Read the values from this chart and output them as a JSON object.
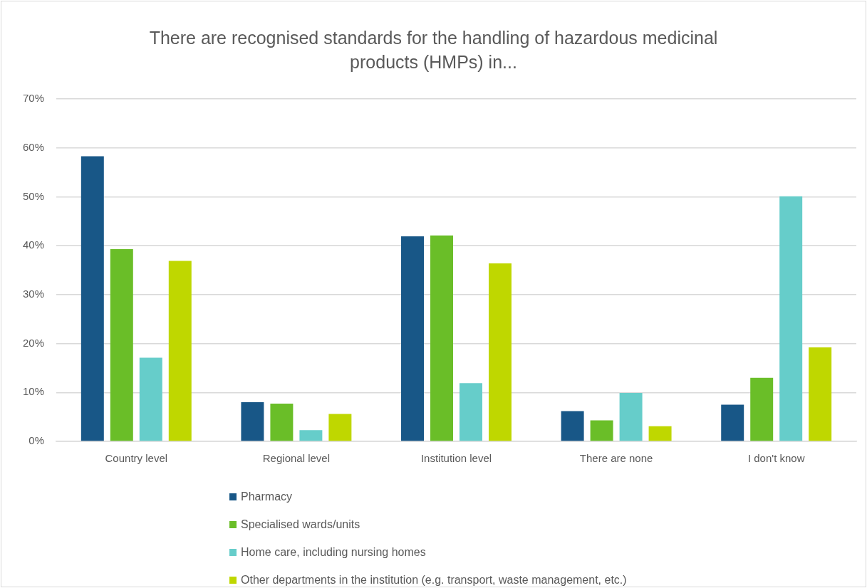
{
  "chart_data": {
    "type": "bar",
    "title": "There are recognised standards for the handling of hazardous medicinal products (HMPs) in...",
    "categories": [
      "Country level",
      "Regional level",
      "Institution level",
      "There are none",
      "I don't know"
    ],
    "series": [
      {
        "name": "Pharmacy",
        "color": "#185787",
        "values": [
          58.3,
          8.0,
          41.9,
          6.2,
          7.5
        ]
      },
      {
        "name": "Specialised wards/units",
        "color": "#6abe28",
        "values": [
          39.3,
          7.7,
          42.1,
          4.3,
          13.0
        ]
      },
      {
        "name": "Home care, including nursing homes",
        "color": "#66cdca",
        "values": [
          17.1,
          2.3,
          11.9,
          9.9,
          50.1
        ]
      },
      {
        "name": "Other departments in the institution (e.g. transport, waste management, etc.)",
        "color": "#bfd700",
        "values": [
          36.9,
          5.6,
          36.4,
          3.1,
          19.2
        ]
      }
    ],
    "ylim": [
      0,
      70
    ],
    "yticks": [
      {
        "value": 0,
        "label": "0%"
      },
      {
        "value": 10,
        "label": "10%"
      },
      {
        "value": 20,
        "label": "20%"
      },
      {
        "value": 30,
        "label": "30%"
      },
      {
        "value": 40,
        "label": "40%"
      },
      {
        "value": 50,
        "label": "50%"
      },
      {
        "value": 60,
        "label": "60%"
      },
      {
        "value": 70,
        "label": "70%"
      }
    ],
    "grid": "y",
    "legend": "bottom"
  }
}
